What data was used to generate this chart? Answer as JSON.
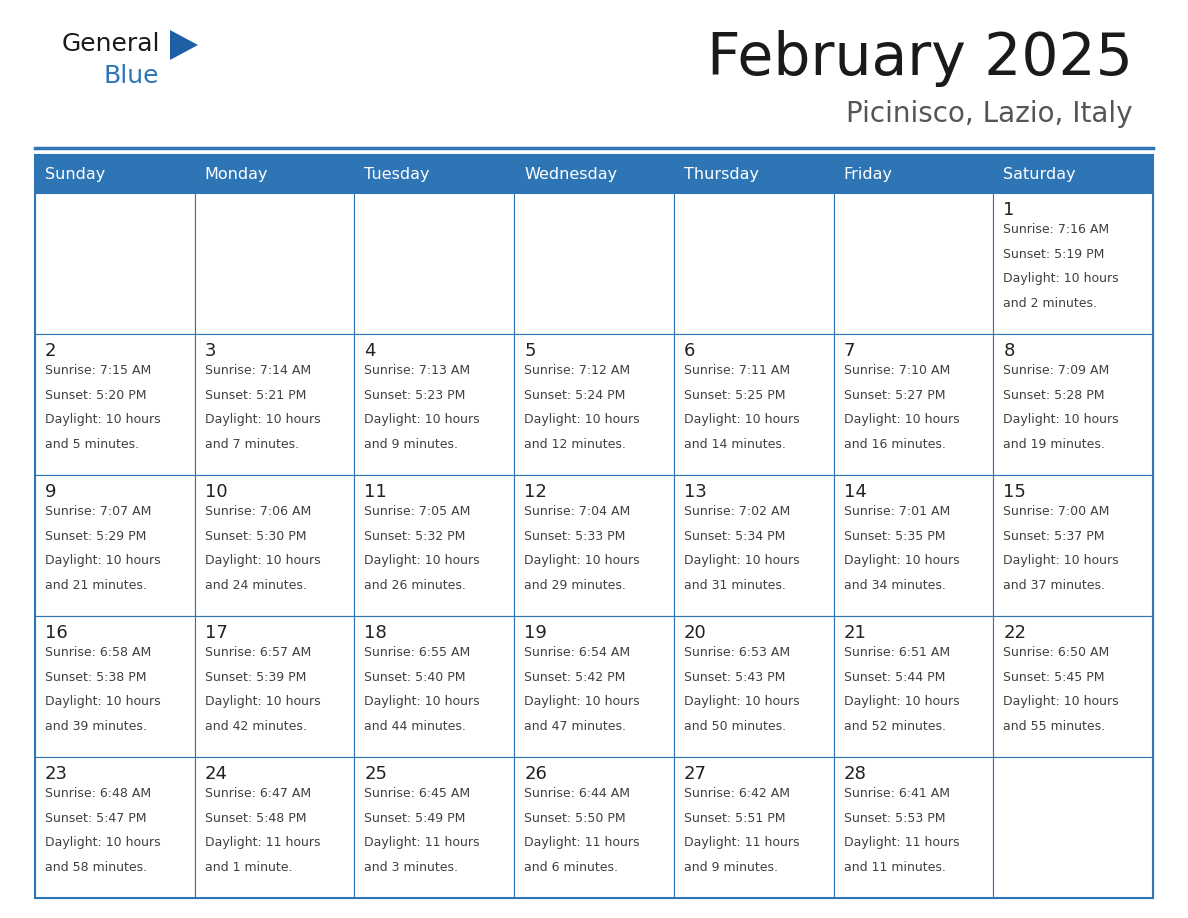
{
  "title": "February 2025",
  "subtitle": "Picinisco, Lazio, Italy",
  "days_of_week": [
    "Sunday",
    "Monday",
    "Tuesday",
    "Wednesday",
    "Thursday",
    "Friday",
    "Saturday"
  ],
  "header_bg": "#2E75B6",
  "header_text": "#FFFFFF",
  "border_color": "#2E75B6",
  "cell_border_color": "#AAAAAA",
  "text_color": "#404040",
  "day_number_color": "#222222",
  "title_color": "#1a1a1a",
  "subtitle_color": "#555555",
  "general_text_color": "#1a1a1a",
  "blue_text_color": "#2E75B6",
  "triangle_color": "#1F5FA6",
  "calendar_data": [
    [
      null,
      null,
      null,
      null,
      null,
      null,
      {
        "day": 1,
        "sunrise": "7:16 AM",
        "sunset": "5:19 PM",
        "daylight": "10 hours\nand 2 minutes."
      }
    ],
    [
      {
        "day": 2,
        "sunrise": "7:15 AM",
        "sunset": "5:20 PM",
        "daylight": "10 hours\nand 5 minutes."
      },
      {
        "day": 3,
        "sunrise": "7:14 AM",
        "sunset": "5:21 PM",
        "daylight": "10 hours\nand 7 minutes."
      },
      {
        "day": 4,
        "sunrise": "7:13 AM",
        "sunset": "5:23 PM",
        "daylight": "10 hours\nand 9 minutes."
      },
      {
        "day": 5,
        "sunrise": "7:12 AM",
        "sunset": "5:24 PM",
        "daylight": "10 hours\nand 12 minutes."
      },
      {
        "day": 6,
        "sunrise": "7:11 AM",
        "sunset": "5:25 PM",
        "daylight": "10 hours\nand 14 minutes."
      },
      {
        "day": 7,
        "sunrise": "7:10 AM",
        "sunset": "5:27 PM",
        "daylight": "10 hours\nand 16 minutes."
      },
      {
        "day": 8,
        "sunrise": "7:09 AM",
        "sunset": "5:28 PM",
        "daylight": "10 hours\nand 19 minutes."
      }
    ],
    [
      {
        "day": 9,
        "sunrise": "7:07 AM",
        "sunset": "5:29 PM",
        "daylight": "10 hours\nand 21 minutes."
      },
      {
        "day": 10,
        "sunrise": "7:06 AM",
        "sunset": "5:30 PM",
        "daylight": "10 hours\nand 24 minutes."
      },
      {
        "day": 11,
        "sunrise": "7:05 AM",
        "sunset": "5:32 PM",
        "daylight": "10 hours\nand 26 minutes."
      },
      {
        "day": 12,
        "sunrise": "7:04 AM",
        "sunset": "5:33 PM",
        "daylight": "10 hours\nand 29 minutes."
      },
      {
        "day": 13,
        "sunrise": "7:02 AM",
        "sunset": "5:34 PM",
        "daylight": "10 hours\nand 31 minutes."
      },
      {
        "day": 14,
        "sunrise": "7:01 AM",
        "sunset": "5:35 PM",
        "daylight": "10 hours\nand 34 minutes."
      },
      {
        "day": 15,
        "sunrise": "7:00 AM",
        "sunset": "5:37 PM",
        "daylight": "10 hours\nand 37 minutes."
      }
    ],
    [
      {
        "day": 16,
        "sunrise": "6:58 AM",
        "sunset": "5:38 PM",
        "daylight": "10 hours\nand 39 minutes."
      },
      {
        "day": 17,
        "sunrise": "6:57 AM",
        "sunset": "5:39 PM",
        "daylight": "10 hours\nand 42 minutes."
      },
      {
        "day": 18,
        "sunrise": "6:55 AM",
        "sunset": "5:40 PM",
        "daylight": "10 hours\nand 44 minutes."
      },
      {
        "day": 19,
        "sunrise": "6:54 AM",
        "sunset": "5:42 PM",
        "daylight": "10 hours\nand 47 minutes."
      },
      {
        "day": 20,
        "sunrise": "6:53 AM",
        "sunset": "5:43 PM",
        "daylight": "10 hours\nand 50 minutes."
      },
      {
        "day": 21,
        "sunrise": "6:51 AM",
        "sunset": "5:44 PM",
        "daylight": "10 hours\nand 52 minutes."
      },
      {
        "day": 22,
        "sunrise": "6:50 AM",
        "sunset": "5:45 PM",
        "daylight": "10 hours\nand 55 minutes."
      }
    ],
    [
      {
        "day": 23,
        "sunrise": "6:48 AM",
        "sunset": "5:47 PM",
        "daylight": "10 hours\nand 58 minutes."
      },
      {
        "day": 24,
        "sunrise": "6:47 AM",
        "sunset": "5:48 PM",
        "daylight": "11 hours\nand 1 minute."
      },
      {
        "day": 25,
        "sunrise": "6:45 AM",
        "sunset": "5:49 PM",
        "daylight": "11 hours\nand 3 minutes."
      },
      {
        "day": 26,
        "sunrise": "6:44 AM",
        "sunset": "5:50 PM",
        "daylight": "11 hours\nand 6 minutes."
      },
      {
        "day": 27,
        "sunrise": "6:42 AM",
        "sunset": "5:51 PM",
        "daylight": "11 hours\nand 9 minutes."
      },
      {
        "day": 28,
        "sunrise": "6:41 AM",
        "sunset": "5:53 PM",
        "daylight": "11 hours\nand 11 minutes."
      },
      null
    ]
  ]
}
